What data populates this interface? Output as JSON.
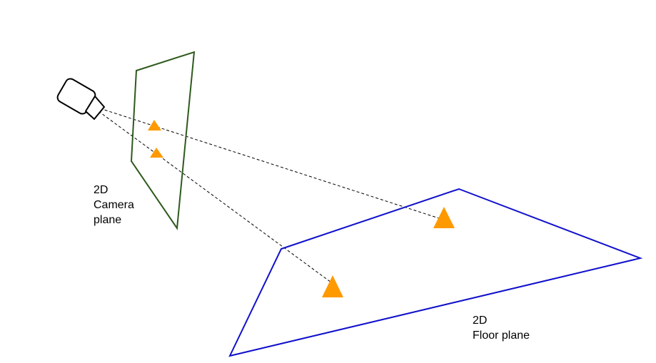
{
  "labels": {
    "camera_plane": [
      "2D",
      "Camera",
      "plane"
    ],
    "floor_plane": [
      "2D",
      "Floor plane"
    ]
  },
  "colors": {
    "camera_plane_outline": "#2e5a1c",
    "floor_plane_outline": "#1010cc",
    "marker": "#ff9900",
    "ray": "#000000",
    "camera_body": "#000000",
    "text": "#000000"
  },
  "icons": {
    "camera": "video-camera-icon",
    "marker": "triangle-marker"
  }
}
